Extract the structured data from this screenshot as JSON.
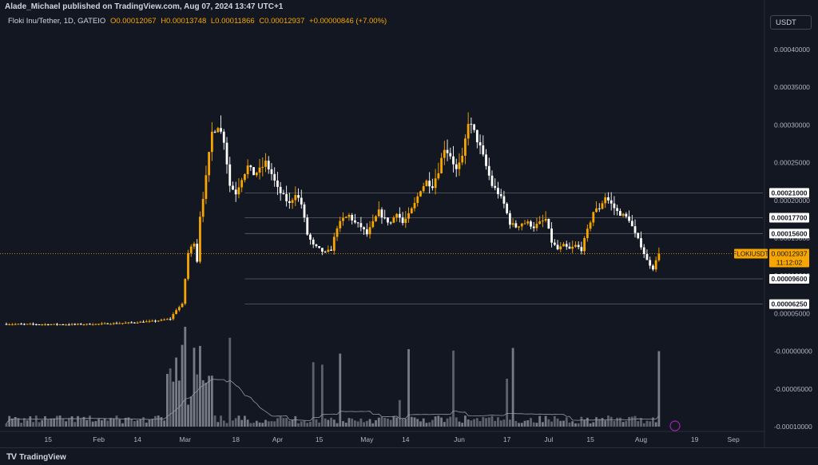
{
  "header": {
    "publisher": "Alade_Michael published on TradingView.com, Aug 07, 2024 13:47 UTC+1",
    "legend_symbol": "Floki Inu/Tether, 1D, GATEIO",
    "open": "O0.00012067",
    "high": "H0.00013748",
    "low": "L0.00011866",
    "close": "C0.00012937",
    "change": "+0.00000846 (+7.00%)",
    "currency": "USDT"
  },
  "footer": {
    "brand": "TradingView",
    "logo_icon": "tradingview-logo-icon"
  },
  "colors": {
    "background": "#131722",
    "up": "#f7a600",
    "down": "#ffffff",
    "volume": "#787b86",
    "grid": "#1e222d",
    "level_line": "#5d606b",
    "last_price": "#f7a600"
  },
  "chart_data": {
    "type": "candlestick",
    "title": "",
    "ylim": [
      -0.000108,
      0.000452
    ],
    "grid": false,
    "y_ticks": [
      "0.00040000",
      "0.00035000",
      "0.00030000",
      "0.00025000",
      "0.00020000",
      "0.00015000",
      "0.00010000",
      "0.00005000",
      "-0.00000000",
      "-0.00005000",
      "-0.00010000"
    ],
    "y_tick_values": [
      0.0004,
      0.00035,
      0.0003,
      0.00025,
      0.0002,
      0.00015,
      0.0001,
      5e-05,
      0,
      -5e-05,
      -0.0001
    ],
    "x_ticks": [
      "15",
      "Feb",
      "14",
      "Mar",
      "18",
      "Apr",
      "15",
      "May",
      "14",
      "Jun",
      "17",
      "Jul",
      "15",
      "Aug",
      "19",
      "Sep"
    ],
    "x_tick_days": [
      14,
      31,
      44,
      60,
      77,
      91,
      105,
      121,
      134,
      152,
      168,
      182,
      196,
      213,
      231,
      244
    ],
    "x_range_days": [
      0,
      251
    ],
    "price_levels": [
      {
        "label": "0.00021000",
        "value": 0.00021
      },
      {
        "label": "0.00017700",
        "value": 0.000177
      },
      {
        "label": "0.00015600",
        "value": 0.000156
      },
      {
        "label": "0.00009600",
        "value": 9.6e-05
      },
      {
        "label": "0.00006250",
        "value": 6.25e-05
      }
    ],
    "last_price": {
      "symbol": "FLOKIUSDT",
      "value_label": "0.00012937",
      "countdown": "11:12:02",
      "value": 0.00012937
    },
    "close_keyframes": [
      [
        0,
        3.6e-05
      ],
      [
        20,
        3.55e-05
      ],
      [
        30,
        3.6e-05
      ],
      [
        40,
        3.75e-05
      ],
      [
        50,
        4e-05
      ],
      [
        55,
        4.3e-05
      ],
      [
        57,
        5.5e-05
      ],
      [
        59,
        6.2e-05
      ],
      [
        61,
        0.00013
      ],
      [
        63,
        0.000145
      ],
      [
        64,
        0.00012
      ],
      [
        65,
        0.00018
      ],
      [
        67,
        0.00023
      ],
      [
        69,
        0.00029
      ],
      [
        71,
        0.0003
      ],
      [
        73,
        0.00028
      ],
      [
        75,
        0.00022
      ],
      [
        77,
        0.00021
      ],
      [
        79,
        0.00023
      ],
      [
        81,
        0.000245
      ],
      [
        83,
        0.000235
      ],
      [
        85,
        0.00024
      ],
      [
        87,
        0.00025
      ],
      [
        89,
        0.000235
      ],
      [
        91,
        0.000215
      ],
      [
        93,
        0.000205
      ],
      [
        95,
        0.000195
      ],
      [
        97,
        0.00021
      ],
      [
        99,
        0.000195
      ],
      [
        101,
        0.000155
      ],
      [
        103,
        0.00014
      ],
      [
        105,
        0.000135
      ],
      [
        107,
        0.00013
      ],
      [
        109,
        0.000135
      ],
      [
        111,
        0.000165
      ],
      [
        113,
        0.000175
      ],
      [
        115,
        0.00018
      ],
      [
        117,
        0.00017
      ],
      [
        119,
        0.000165
      ],
      [
        121,
        0.000155
      ],
      [
        123,
        0.00017
      ],
      [
        125,
        0.000185
      ],
      [
        127,
        0.000175
      ],
      [
        129,
        0.00017
      ],
      [
        131,
        0.000185
      ],
      [
        133,
        0.00017
      ],
      [
        135,
        0.00018
      ],
      [
        137,
        0.000195
      ],
      [
        139,
        0.000215
      ],
      [
        141,
        0.000225
      ],
      [
        143,
        0.00022
      ],
      [
        145,
        0.00024
      ],
      [
        147,
        0.00027
      ],
      [
        149,
        0.00026
      ],
      [
        151,
        0.00024
      ],
      [
        153,
        0.000255
      ],
      [
        155,
        0.000305
      ],
      [
        157,
        0.00029
      ],
      [
        159,
        0.00027
      ],
      [
        161,
        0.000245
      ],
      [
        163,
        0.00022
      ],
      [
        165,
        0.00021
      ],
      [
        167,
        0.000195
      ],
      [
        169,
        0.00017
      ],
      [
        171,
        0.000165
      ],
      [
        173,
        0.00017
      ],
      [
        175,
        0.00017
      ],
      [
        177,
        0.000165
      ],
      [
        179,
        0.00017
      ],
      [
        181,
        0.000175
      ],
      [
        183,
        0.000145
      ],
      [
        185,
        0.000135
      ],
      [
        187,
        0.00014
      ],
      [
        189,
        0.000135
      ],
      [
        191,
        0.00014
      ],
      [
        193,
        0.000135
      ],
      [
        195,
        0.00016
      ],
      [
        197,
        0.000185
      ],
      [
        199,
        0.00019
      ],
      [
        201,
        0.000205
      ],
      [
        203,
        0.000195
      ],
      [
        205,
        0.000185
      ],
      [
        207,
        0.00018
      ],
      [
        209,
        0.000175
      ],
      [
        211,
        0.000155
      ],
      [
        213,
        0.00014
      ],
      [
        215,
        0.00012
      ],
      [
        217,
        0.00011
      ],
      [
        219,
        0.000129
      ]
    ],
    "volume_spike_days": [
      54,
      55,
      56,
      57,
      59,
      60,
      61,
      63,
      65,
      75,
      103,
      106,
      112,
      132,
      135,
      150,
      168,
      170,
      219
    ],
    "volume_ma_note": ""
  }
}
